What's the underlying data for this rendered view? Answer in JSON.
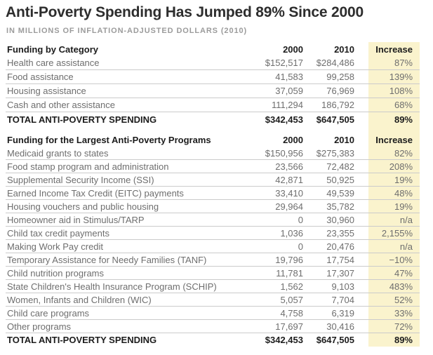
{
  "title": "Anti-Poverty Spending Has Jumped 89% Since 2000",
  "subtitle": "IN MILLIONS OF INFLATION-ADJUSTED DOLLARS (2010)",
  "colors": {
    "highlight_band": "#faf3cd",
    "row_divider": "#cbcbcb",
    "body_text": "#6e6e6e",
    "emphasis_text": "#1c1c1c",
    "subtitle_text": "#9b9b9b"
  },
  "chart_data": {
    "type": "table",
    "title": "Anti-Poverty Spending Has Jumped 89% Since 2000",
    "subtitle": "IN MILLIONS OF INFLATION-ADJUSTED DOLLARS (2010)",
    "columns": {
      "year1": "2000",
      "year2": "2010",
      "increase": "Increase"
    },
    "sections": [
      {
        "header": "Funding by Category",
        "rows": [
          {
            "label": "Health care assistance",
            "y2000": "$152,517",
            "y2010": "$284,486",
            "increase": "87%"
          },
          {
            "label": "Food assistance",
            "y2000": "41,583",
            "y2010": "99,258",
            "increase": "139%"
          },
          {
            "label": "Housing assistance",
            "y2000": "37,059",
            "y2010": "76,969",
            "increase": "108%"
          },
          {
            "label": "Cash and other assistance",
            "y2000": "111,294",
            "y2010": "186,792",
            "increase": "68%"
          }
        ],
        "total": {
          "label": "TOTAL ANTI-POVERTY SPENDING",
          "y2000": "$342,453",
          "y2010": "$647,505",
          "increase": "89%"
        }
      },
      {
        "header": "Funding for the Largest Anti-Poverty Programs",
        "rows": [
          {
            "label": "Medicaid grants to states",
            "y2000": "$150,956",
            "y2010": "$275,383",
            "increase": "82%"
          },
          {
            "label": "Food stamp program and administration",
            "y2000": "23,566",
            "y2010": "72,482",
            "increase": "208%"
          },
          {
            "label": "Supplemental Security Income (SSI)",
            "y2000": "42,871",
            "y2010": "50,925",
            "increase": "19%"
          },
          {
            "label": "Earned Income Tax Credit (EITC) payments",
            "y2000": "33,410",
            "y2010": "49,539",
            "increase": "48%"
          },
          {
            "label": "Housing vouchers and public housing",
            "y2000": "29,964",
            "y2010": "35,782",
            "increase": "19%"
          },
          {
            "label": "Homeowner aid in Stimulus/TARP",
            "y2000": "0",
            "y2010": "30,960",
            "increase": "n/a"
          },
          {
            "label": "Child tax credit payments",
            "y2000": "1,036",
            "y2010": "23,355",
            "increase": "2,155%"
          },
          {
            "label": "Making Work Pay credit",
            "y2000": "0",
            "y2010": "20,476",
            "increase": "n/a"
          },
          {
            "label": "Temporary Assistance for Needy Families (TANF)",
            "y2000": "19,796",
            "y2010": "17,754",
            "increase": "−10%"
          },
          {
            "label": "Child nutrition programs",
            "y2000": "11,781",
            "y2010": "17,307",
            "increase": "47%"
          },
          {
            "label": "State Children's Health Insurance Program (SCHIP)",
            "y2000": "1,562",
            "y2010": "9,103",
            "increase": "483%"
          },
          {
            "label": "Women, Infants and Children (WIC)",
            "y2000": "5,057",
            "y2010": "7,704",
            "increase": "52%"
          },
          {
            "label": "Child care programs",
            "y2000": "4,758",
            "y2010": "6,319",
            "increase": "33%"
          },
          {
            "label": "Other programs",
            "y2000": "17,697",
            "y2010": "30,416",
            "increase": "72%"
          }
        ],
        "total": {
          "label": "TOTAL ANTI-POVERTY SPENDING",
          "y2000": "$342,453",
          "y2010": "$647,505",
          "increase": "89%"
        }
      }
    ]
  }
}
